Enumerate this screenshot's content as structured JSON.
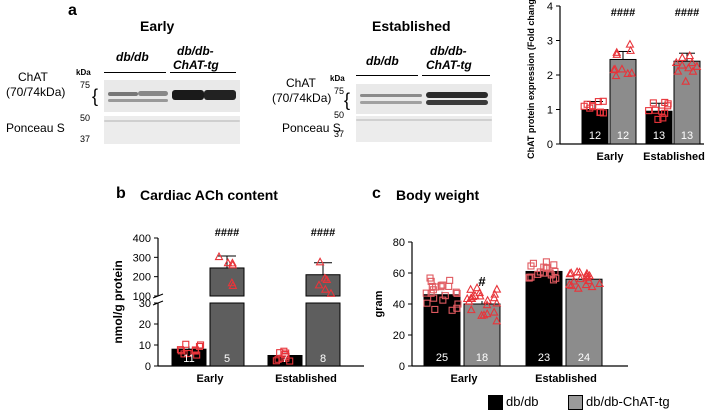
{
  "panel_a": {
    "letter": "a",
    "early": {
      "title": "Early",
      "lane1": "db/db",
      "lane2": "db/db-",
      "lane2b": "ChAT-tg",
      "chat_label": "ChAT",
      "chat_kda": "(70/74kDa)",
      "ponceau": "Ponceau S",
      "kda": "kDa",
      "mw75": "75",
      "mw50": "50",
      "mw37": "37"
    },
    "established": {
      "title": "Established",
      "lane1": "db/db",
      "lane2": "db/db-",
      "lane2b": "ChAT-tg",
      "chat_label": "ChAT",
      "chat_kda": "(70/74kDa)",
      "ponceau": "Ponceau S",
      "kda": "kDa",
      "mw75": "75",
      "mw50": "50",
      "mw37": "37"
    }
  },
  "panel_b": {
    "letter": "b",
    "title": "Cardiac ACh content"
  },
  "panel_c": {
    "letter": "c",
    "title": "Body weight"
  },
  "legend": {
    "dbdb": "db/db",
    "chat_tg": "db/db-ChAT-tg"
  },
  "chart_data": [
    {
      "id": "a",
      "type": "bar",
      "title": "",
      "ylabel": "ChAT protein expression (Fold change)",
      "ylim": [
        0,
        4
      ],
      "yticks": [
        "0",
        "1",
        "2",
        "3",
        "4"
      ],
      "categories": [
        "Early",
        "Established"
      ],
      "series": [
        {
          "name": "db/db",
          "values": [
            1.0,
            0.95
          ],
          "n": [
            "12",
            "13"
          ]
        },
        {
          "name": "db/db-ChAT-tg",
          "values": [
            2.45,
            2.4
          ],
          "n": [
            "12",
            "13"
          ]
        }
      ],
      "annotations": [
        "####",
        "####"
      ]
    },
    {
      "id": "b",
      "type": "bar",
      "title": "Cardiac ACh content",
      "ylabel": "nmol/g protein",
      "broken_axis": true,
      "ylim": [
        0,
        400
      ],
      "yticks": [
        "0",
        "10",
        "20",
        "30",
        "100",
        "200",
        "300",
        "400"
      ],
      "categories": [
        "Early",
        "Established"
      ],
      "series": [
        {
          "name": "db/db",
          "values": [
            8,
            5
          ],
          "n": [
            "11",
            "7"
          ]
        },
        {
          "name": "db/db-ChAT-tg",
          "values": [
            245,
            210
          ],
          "n": [
            "5",
            "8"
          ]
        }
      ],
      "annotations": [
        "####",
        "####"
      ]
    },
    {
      "id": "c",
      "type": "bar",
      "title": "Body weight",
      "ylabel": "gram",
      "ylim": [
        0,
        80
      ],
      "yticks": [
        "0",
        "20",
        "40",
        "60",
        "80"
      ],
      "categories": [
        "Early",
        "Established"
      ],
      "series": [
        {
          "name": "db/db",
          "values": [
            46,
            61
          ],
          "n": [
            "25",
            "23"
          ]
        },
        {
          "name": "db/db-ChAT-tg",
          "values": [
            40,
            56
          ],
          "n": [
            "18",
            "24"
          ]
        }
      ],
      "annotations": [
        "#",
        ""
      ]
    }
  ]
}
